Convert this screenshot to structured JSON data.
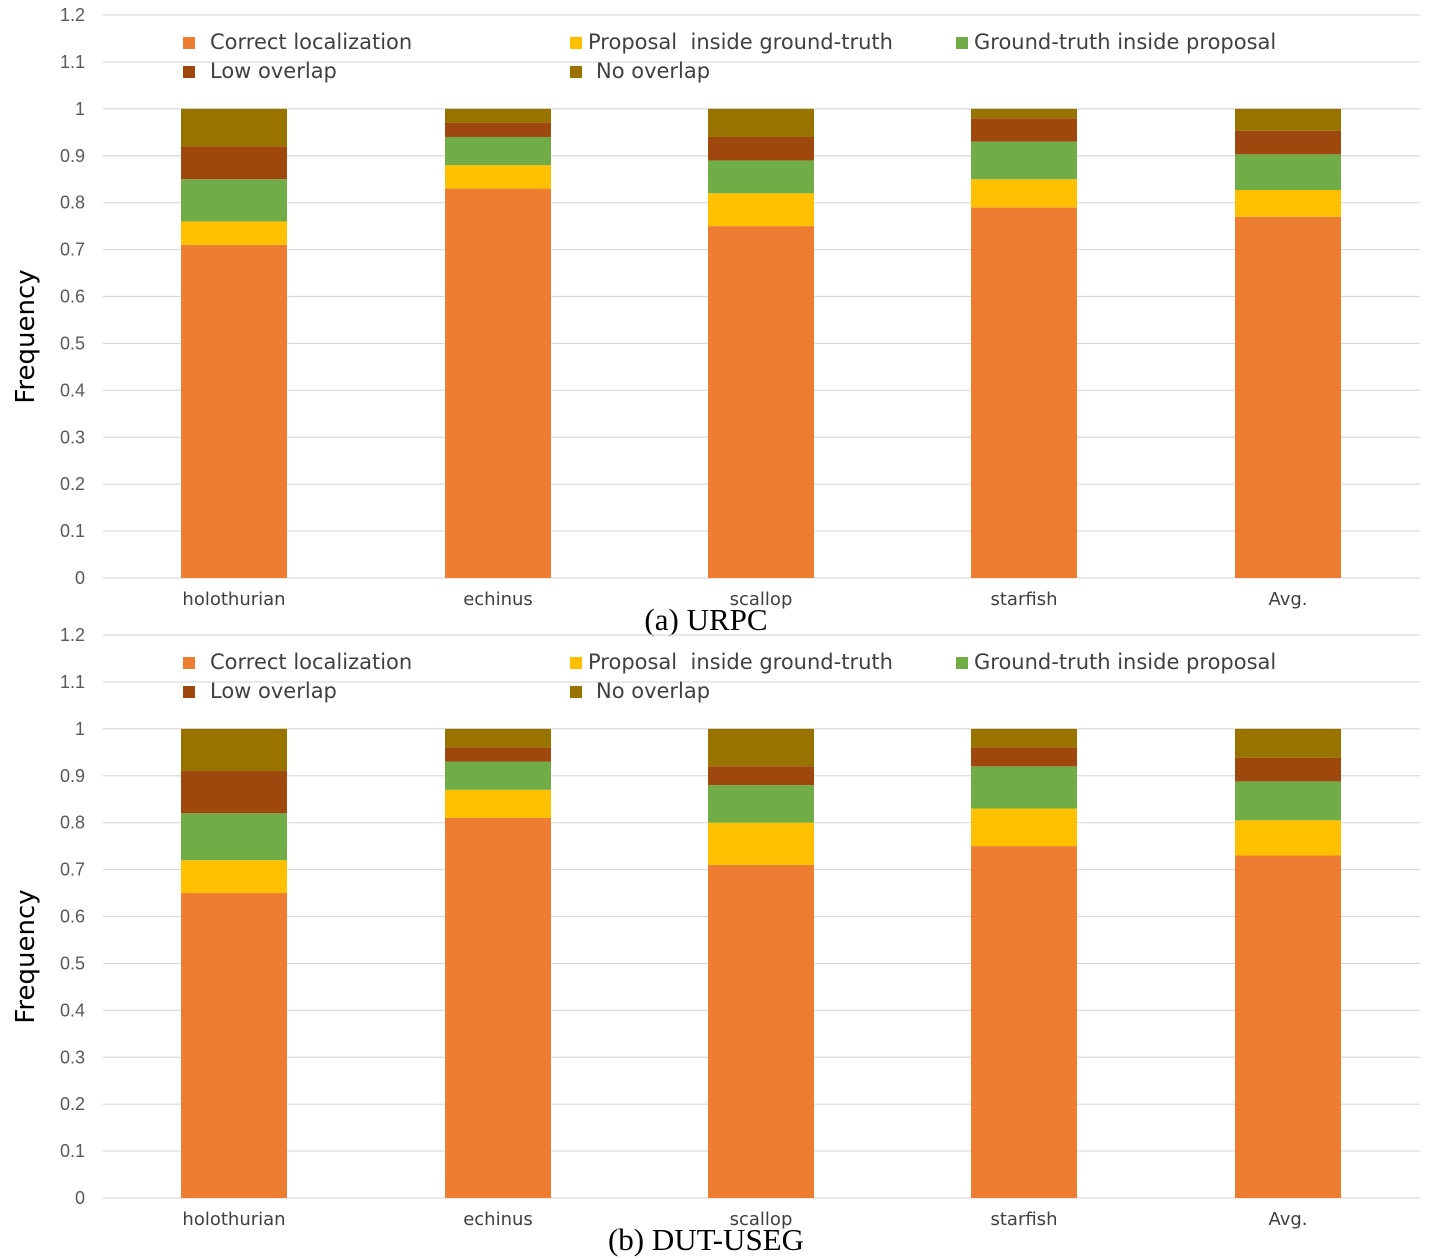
{
  "colors": {
    "correct": "#ED7D31",
    "proposal_inside": "#FFC000",
    "gt_inside": "#70AD47",
    "low_overlap": "#9E480E",
    "no_overlap": "#997300",
    "grid": "#D9D9D9"
  },
  "chart_data": [
    {
      "type": "bar",
      "stacked": true,
      "caption": "(a) URPC",
      "ylabel": "Frequency",
      "ylim": [
        0,
        1.2
      ],
      "yticks": [
        "0",
        "0.1",
        "0.2",
        "0.3",
        "0.4",
        "0.5",
        "0.6",
        "0.7",
        "0.8",
        "0.9",
        "1",
        "1.1",
        "1.2"
      ],
      "grid": true,
      "legend_position": "top",
      "categories": [
        "holothurian",
        "echinus",
        "scallop",
        "starfish",
        "Avg."
      ],
      "series": [
        {
          "name": "Correct localization",
          "color_key": "correct",
          "values": [
            0.71,
            0.83,
            0.75,
            0.79,
            0.77
          ]
        },
        {
          "name": "Proposal  inside ground-truth",
          "color_key": "proposal_inside",
          "values": [
            0.05,
            0.05,
            0.07,
            0.06,
            0.057
          ]
        },
        {
          "name": "Ground-truth inside proposal",
          "color_key": "gt_inside",
          "values": [
            0.09,
            0.06,
            0.07,
            0.08,
            0.076
          ]
        },
        {
          "name": "Low overlap",
          "color_key": "low_overlap",
          "values": [
            0.07,
            0.03,
            0.05,
            0.05,
            0.05
          ]
        },
        {
          "name": "No overlap",
          "color_key": "no_overlap",
          "values": [
            0.08,
            0.03,
            0.06,
            0.02,
            0.047
          ]
        }
      ]
    },
    {
      "type": "bar",
      "stacked": true,
      "caption": "(b) DUT-USEG",
      "ylabel": "Frequency",
      "ylim": [
        0,
        1.2
      ],
      "yticks": [
        "0",
        "0.1",
        "0.2",
        "0.3",
        "0.4",
        "0.5",
        "0.6",
        "0.7",
        "0.8",
        "0.9",
        "1",
        "1.1",
        "1.2"
      ],
      "grid": true,
      "legend_position": "top",
      "categories": [
        "holothurian",
        "echinus",
        "scallop",
        "starfish",
        "Avg."
      ],
      "series": [
        {
          "name": "Correct localization",
          "color_key": "correct",
          "values": [
            0.65,
            0.81,
            0.71,
            0.75,
            0.73
          ]
        },
        {
          "name": "Proposal  inside ground-truth",
          "color_key": "proposal_inside",
          "values": [
            0.07,
            0.06,
            0.09,
            0.08,
            0.075
          ]
        },
        {
          "name": "Ground-truth inside proposal",
          "color_key": "gt_inside",
          "values": [
            0.1,
            0.06,
            0.08,
            0.09,
            0.083
          ]
        },
        {
          "name": "Low overlap",
          "color_key": "low_overlap",
          "values": [
            0.09,
            0.03,
            0.04,
            0.04,
            0.05
          ]
        },
        {
          "name": "No overlap",
          "color_key": "no_overlap",
          "values": [
            0.09,
            0.04,
            0.08,
            0.04,
            0.062
          ]
        }
      ]
    }
  ]
}
